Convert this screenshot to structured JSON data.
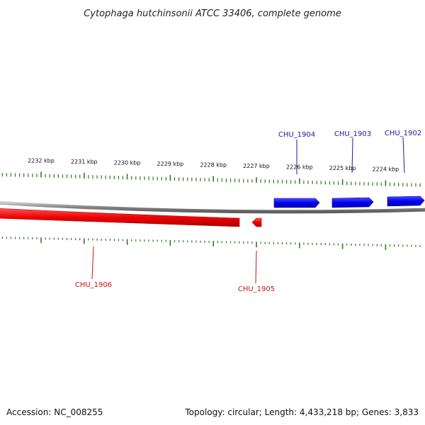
{
  "title": "Cytophaga hutchinsonii ATCC 33406, complete genome",
  "footer": {
    "accession": "Accession: NC_008255",
    "summary": "Topology: circular; Length: 4,433,218 bp; Genes: 3,833"
  },
  "ticks": [
    {
      "label": "2232 kbp",
      "kbp": 2232
    },
    {
      "label": "2231 kbp",
      "kbp": 2231
    },
    {
      "label": "2230 kbp",
      "kbp": 2230
    },
    {
      "label": "2229 kbp",
      "kbp": 2229
    },
    {
      "label": "2228 kbp",
      "kbp": 2228
    },
    {
      "label": "2227 kbp",
      "kbp": 2227
    },
    {
      "label": "2226 kbp",
      "kbp": 2226
    },
    {
      "label": "2225 kbp",
      "kbp": 2225
    },
    {
      "label": "2224 kbp",
      "kbp": 2224
    }
  ],
  "genes": [
    {
      "name": "CHU_1902",
      "strand": "forward"
    },
    {
      "name": "CHU_1903",
      "strand": "forward"
    },
    {
      "name": "CHU_1904",
      "strand": "forward"
    },
    {
      "name": "CHU_1905",
      "strand": "reverse"
    },
    {
      "name": "CHU_1906",
      "strand": "reverse"
    }
  ],
  "colors": {
    "forward": "#0000ee",
    "reverse": "#ee0000",
    "forward_label": "#1a1aa6",
    "reverse_label": "#cc1111",
    "ticks": "#2e7d1e",
    "backbone": "#888888"
  }
}
